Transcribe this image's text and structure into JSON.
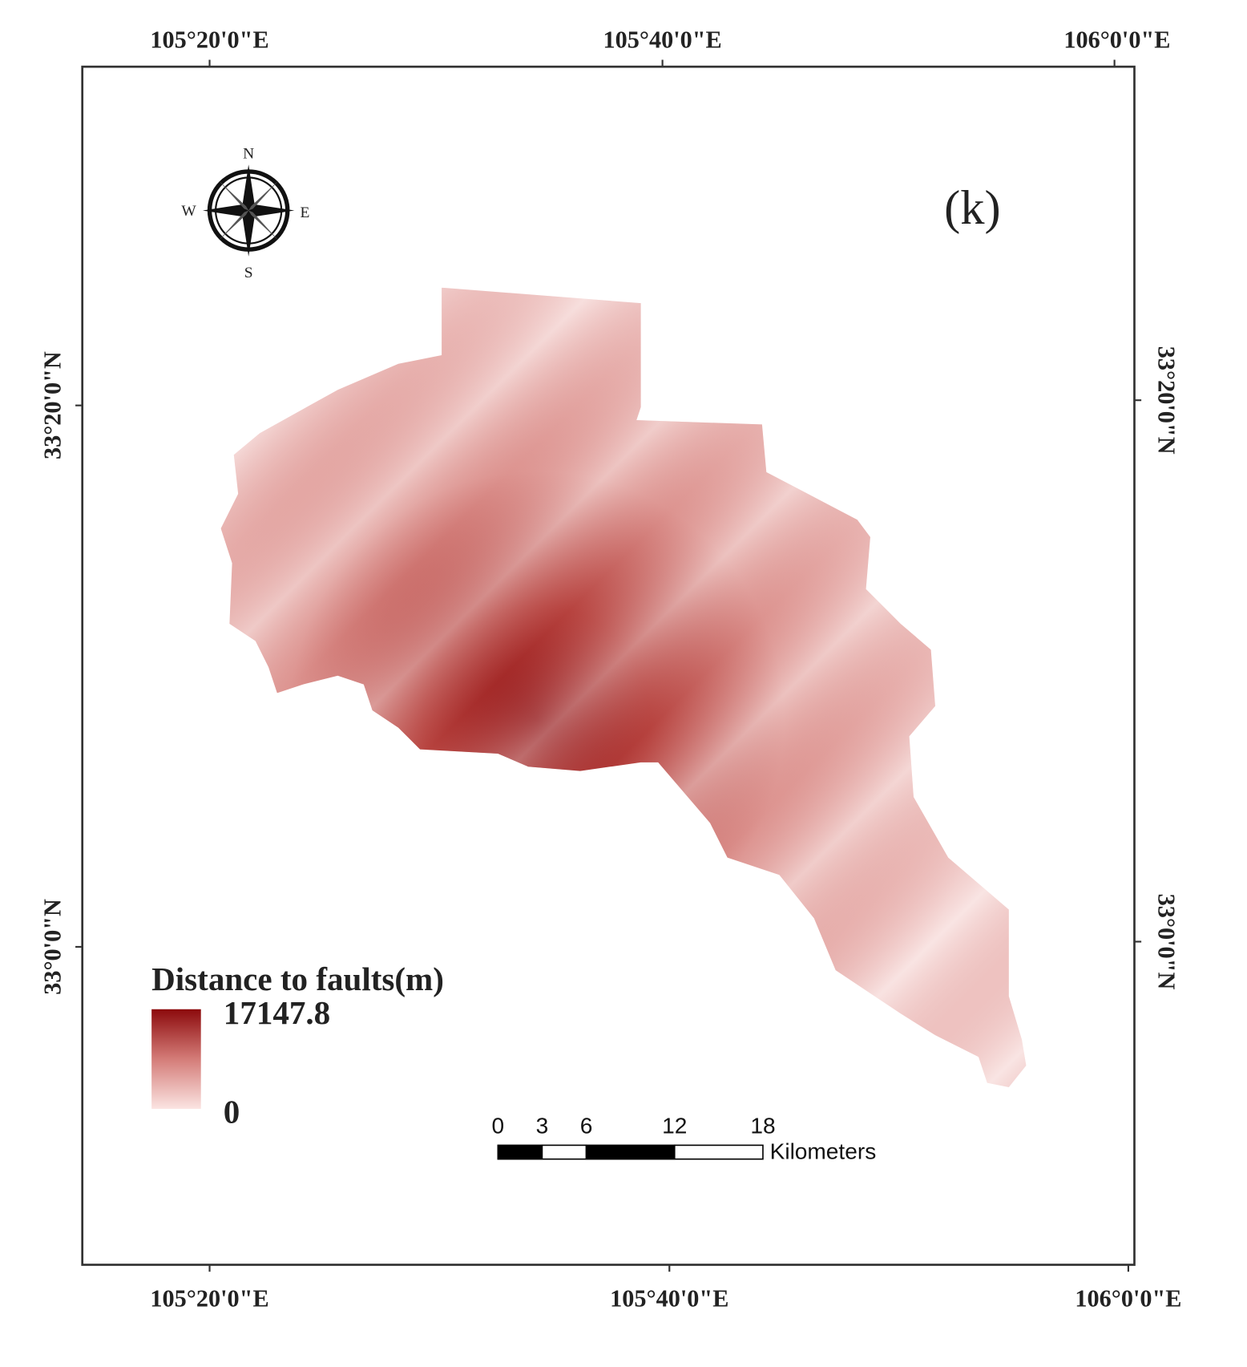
{
  "map": {
    "panel_label": "(k)",
    "top_labels": [
      "105°20'0\"E",
      "105°40'0\"E",
      "106°0'0\"E"
    ],
    "bottom_labels": [
      "105°20'0\"E",
      "105°40'0\"E",
      "106°0'0\"E"
    ],
    "left_labels": [
      "33°20'0\"N",
      "33°0'0\"N"
    ],
    "right_labels": [
      "33°20'0\"N",
      "33°0'0\"N"
    ],
    "compass": {
      "n": "N",
      "s": "S",
      "e": "E",
      "w": "W"
    },
    "legend": {
      "title": "Distance to faults(m)",
      "max": 17147.8,
      "min": 0
    },
    "scale_bar": {
      "ticks": [
        0,
        3,
        6,
        12,
        18
      ],
      "unit": "Kilometers"
    }
  }
}
